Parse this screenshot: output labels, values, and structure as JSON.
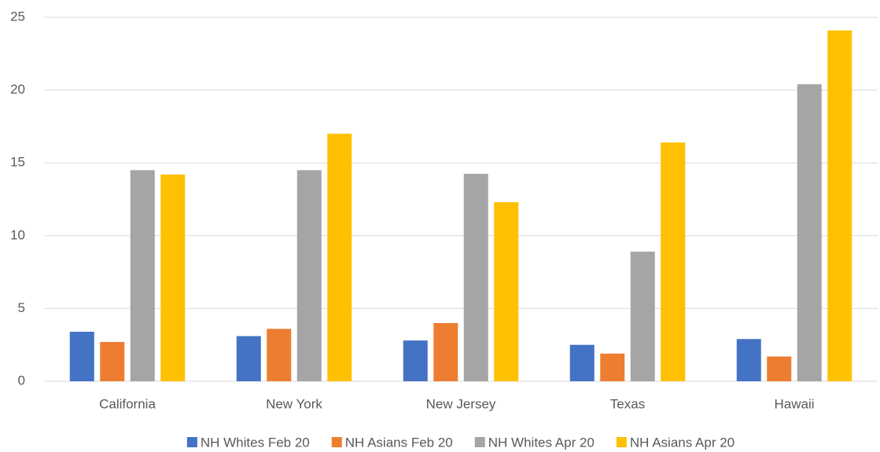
{
  "chart_data": {
    "type": "bar",
    "categories": [
      "California",
      "New York",
      "New Jersey",
      "Texas",
      "Hawaii"
    ],
    "series": [
      {
        "name": "NH Whites Feb 20",
        "color": "#4472c4",
        "values": [
          3.4,
          3.1,
          2.8,
          2.5,
          2.9
        ]
      },
      {
        "name": "NH Asians Feb 20",
        "color": "#ed7d31",
        "values": [
          2.7,
          3.6,
          4.0,
          1.9,
          1.7
        ]
      },
      {
        "name": "NH Whites Apr 20",
        "color": "#a5a5a5",
        "values": [
          14.5,
          14.5,
          14.25,
          8.9,
          20.4
        ]
      },
      {
        "name": "NH Asians Apr 20",
        "color": "#ffc000",
        "values": [
          14.2,
          17.0,
          12.3,
          16.4,
          24.1
        ]
      }
    ],
    "ylim": [
      0,
      25
    ],
    "yticks": [
      0,
      5,
      10,
      15,
      20,
      25
    ],
    "grid": true,
    "legend": "bottom"
  }
}
